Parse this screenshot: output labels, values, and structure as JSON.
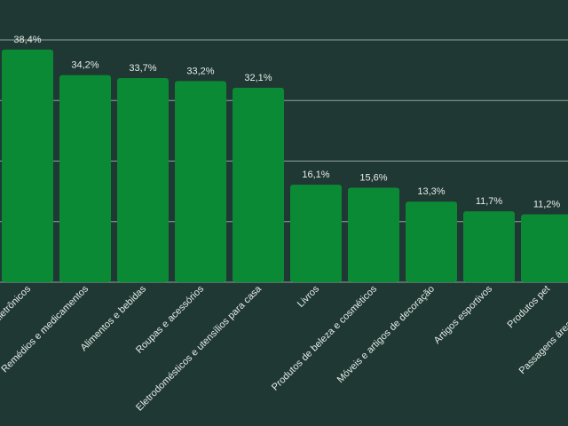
{
  "chart_data": {
    "type": "bar",
    "categories": [
      "Eletrônicos",
      "Remédios e medicamentos",
      "Alimentos e bebidas",
      "Roupas e acessórios",
      "Eletrodomésticos e utensílios para casa",
      "Livros",
      "Produtos de beleza e cosméticos",
      "Móveis e artigos de decoração",
      "Artigos esportivos",
      "Produtos pet",
      "Passagens áreas e pacotes"
    ],
    "values": [
      38.4,
      34.2,
      33.7,
      33.2,
      32.1,
      16.1,
      15.6,
      13.3,
      11.7,
      11.2,
      null
    ],
    "value_labels": [
      "38,4%",
      "34,2%",
      "33,7%",
      "33,2%",
      "32,1%",
      "16,1%",
      "15,6%",
      "13,3%",
      "11,7%",
      "11,2%",
      null
    ],
    "color": "#0b8a36",
    "ylim": [
      0,
      40
    ],
    "yticks": [
      0,
      10,
      20,
      30,
      40
    ],
    "grid": true
  }
}
